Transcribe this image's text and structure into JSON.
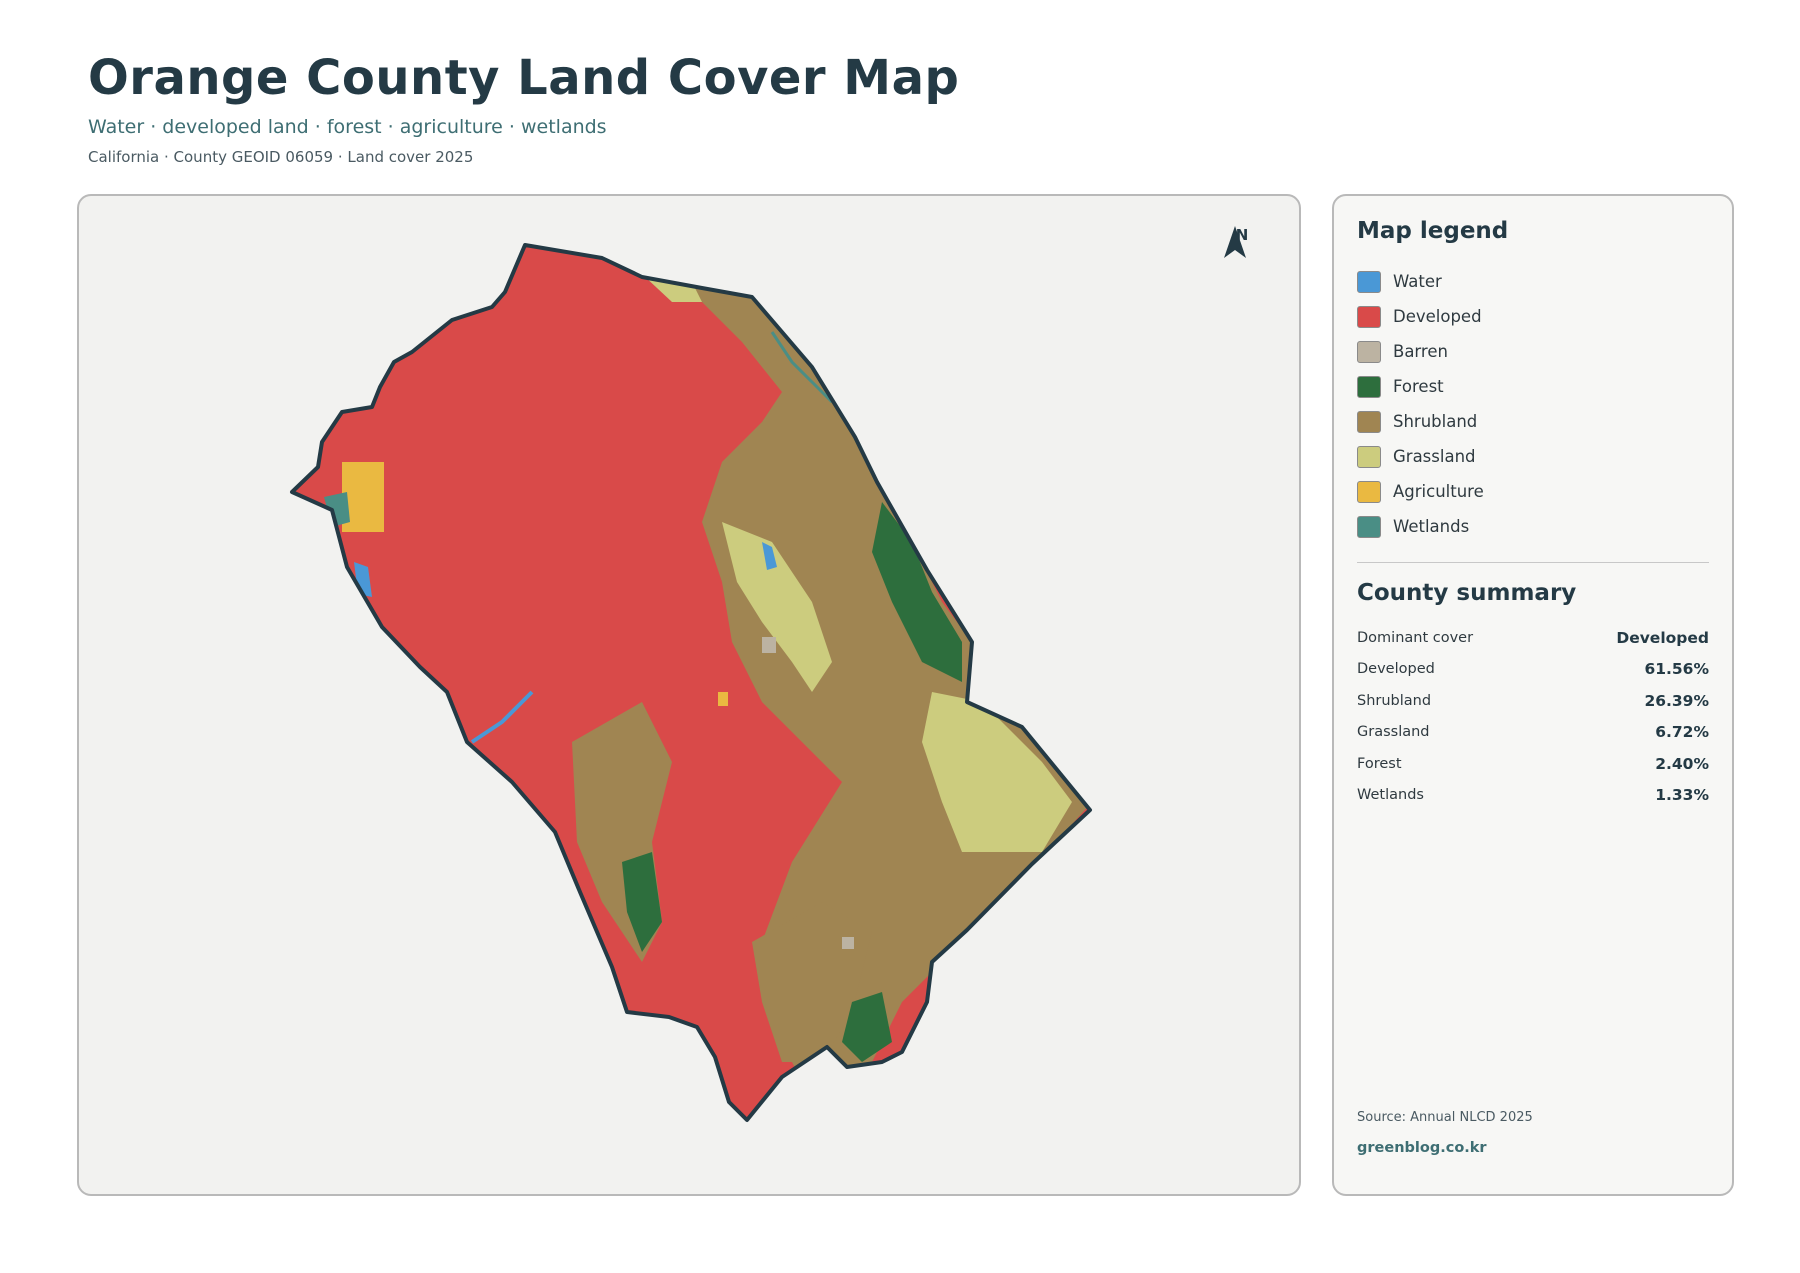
{
  "header": {
    "title": "Orange County Land Cover Map",
    "subtitle": "Water · developed land · forest · agriculture · wetlands",
    "meta": "California · County GEOID 06059 · Land cover 2025"
  },
  "map": {
    "north_label": "N",
    "colors": {
      "water": "#4a98d6",
      "developed": "#d94a49",
      "barren": "#bcb3a2",
      "forest": "#2d6e3d",
      "shrubland": "#a08552",
      "grassland": "#cccc7e",
      "agriculture": "#eab941",
      "wetlands": "#4a8e85",
      "boundary": "#243a45"
    }
  },
  "legend": {
    "title": "Map legend",
    "items": [
      {
        "label": "Water",
        "color": "#4a98d6"
      },
      {
        "label": "Developed",
        "color": "#d94a49"
      },
      {
        "label": "Barren",
        "color": "#bcb3a2"
      },
      {
        "label": "Forest",
        "color": "#2d6e3d"
      },
      {
        "label": "Shrubland",
        "color": "#a08552"
      },
      {
        "label": "Grassland",
        "color": "#cccc7e"
      },
      {
        "label": "Agriculture",
        "color": "#eab941"
      },
      {
        "label": "Wetlands",
        "color": "#4a8e85"
      }
    ]
  },
  "summary": {
    "title": "County summary",
    "rows": [
      {
        "label": "Dominant cover",
        "value": "Developed"
      },
      {
        "label": "Developed",
        "value": "61.56%"
      },
      {
        "label": "Shrubland",
        "value": "26.39%"
      },
      {
        "label": "Grassland",
        "value": "6.72%"
      },
      {
        "label": "Forest",
        "value": "2.40%"
      },
      {
        "label": "Wetlands",
        "value": "1.33%"
      }
    ]
  },
  "footer": {
    "source": "Source: Annual NLCD 2025",
    "site": "greenblog.co.kr"
  }
}
